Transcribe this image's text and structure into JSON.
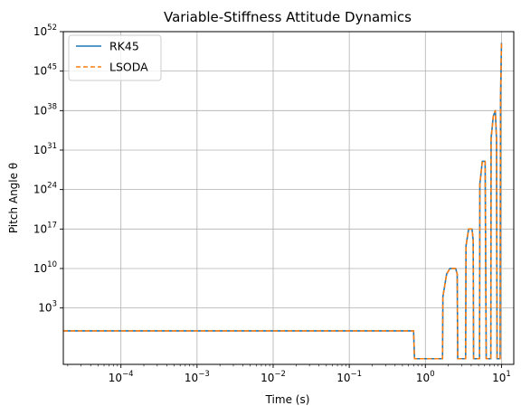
{
  "chart_data": {
    "type": "line",
    "title": "Variable-Stiffness Attitude Dynamics",
    "xlabel": "Time (s)",
    "ylabel": "Pitch Angle θ",
    "xscale": "log",
    "yscale": "log",
    "xlim": [
      1.75e-05,
      14.5
    ],
    "ylim": [
      1e-07,
      1e+52
    ],
    "grid": true,
    "legend_position": "upper-left",
    "x_ticks": [
      {
        "base": "10",
        "exp": "−4"
      },
      {
        "base": "10",
        "exp": "−3"
      },
      {
        "base": "10",
        "exp": "−2"
      },
      {
        "base": "10",
        "exp": "−1"
      },
      {
        "base": "10",
        "exp": "0"
      },
      {
        "base": "10",
        "exp": "1"
      }
    ],
    "y_ticks": [
      {
        "base": "10",
        "exp": "3"
      },
      {
        "base": "10",
        "exp": "10"
      },
      {
        "base": "10",
        "exp": "17"
      },
      {
        "base": "10",
        "exp": "24"
      },
      {
        "base": "10",
        "exp": "31"
      },
      {
        "base": "10",
        "exp": "38"
      },
      {
        "base": "10",
        "exp": "45"
      },
      {
        "base": "10",
        "exp": "52"
      }
    ],
    "series": [
      {
        "name": "RK45",
        "color": "#1f77b4",
        "style": "solid"
      },
      {
        "name": "LSODA",
        "color": "#ff7f0e",
        "style": "dashed"
      }
    ],
    "points": [
      [
        1.75e-05,
        0.0873
      ],
      [
        0.5,
        0.0873
      ],
      [
        0.7,
        0.0873
      ],
      [
        0.72,
        1e-06
      ],
      [
        1.68,
        1e-06
      ],
      [
        1.7,
        100000.0
      ],
      [
        1.9,
        1000000000.0
      ],
      [
        2.1,
        10000000000.0
      ],
      [
        2.5,
        10000000000.0
      ],
      [
        2.62,
        1000000000.0
      ],
      [
        2.66,
        1e-06
      ],
      [
        3.38,
        1e-06
      ],
      [
        3.42,
        100000000000000.0
      ],
      [
        3.7,
        1e+17
      ],
      [
        4.1,
        1e+17
      ],
      [
        4.25,
        1000000000000000.0
      ],
      [
        4.3,
        1e-06
      ],
      [
        5.15,
        1e-06
      ],
      [
        5.2,
        1e+25
      ],
      [
        5.6,
        1e+29
      ],
      [
        6.1,
        1e+29
      ],
      [
        6.3,
        1e-06
      ],
      [
        7.25,
        1e-06
      ],
      [
        7.3,
        1e+33
      ],
      [
        7.8,
        1e+37
      ],
      [
        8.3,
        1e+38
      ],
      [
        8.6,
        1e+33
      ],
      [
        8.75,
        1e-06
      ],
      [
        9.6,
        1e-06
      ],
      [
        9.72,
        1e+40
      ],
      [
        10.0,
        1e+50
      ]
    ]
  }
}
